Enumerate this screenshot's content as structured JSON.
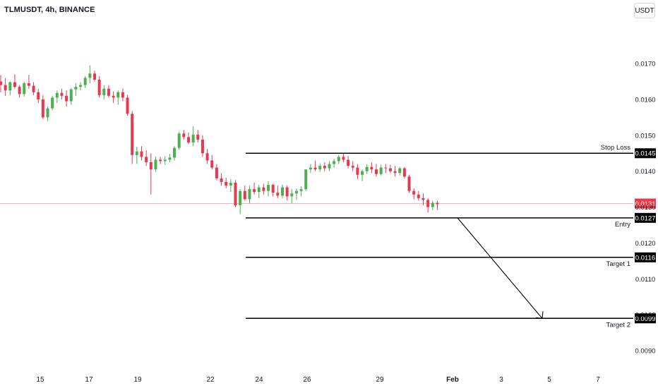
{
  "header": {
    "symbol": "TLMUSDT, 4h, BINANCE",
    "currency": "USDT"
  },
  "chart_data": {
    "type": "candlestick",
    "y_ticks": [
      "0.0170",
      "0.0160",
      "0.0150",
      "0.0140",
      "0.0130",
      "0.0120",
      "0.0110",
      "0.0100",
      "0.0090"
    ],
    "ylim": [
      0.00855,
      0.01818
    ],
    "x_ticks": [
      "15",
      "17",
      "19",
      "22",
      "24",
      "26",
      "29",
      "Feb",
      "3",
      "5",
      "7"
    ],
    "current_price": "0.0131",
    "levels": [
      {
        "name": "Stop Loss",
        "value": 0.0145,
        "label": "0.0145"
      },
      {
        "name": "Entry",
        "value": 0.0127,
        "label": "0.0127"
      },
      {
        "name": "Target 1",
        "value": 0.0116,
        "label": "0.0116"
      },
      {
        "name": "Target 2",
        "value": 0.0099,
        "label": "0.0099"
      }
    ],
    "colors": {
      "up": "#26a69a",
      "down": "#ef5350",
      "up_candle": "#4caf50",
      "down_candle": "#e53950",
      "line": "#000000",
      "current": "#f23645"
    },
    "candles": [
      [
        0.0165,
        0.01668,
        0.0162,
        0.0164
      ],
      [
        0.0164,
        0.0166,
        0.0161,
        0.01625
      ],
      [
        0.01625,
        0.0165,
        0.01612,
        0.01648
      ],
      [
        0.01648,
        0.0167,
        0.0163,
        0.01635
      ],
      [
        0.01635,
        0.0164,
        0.01605,
        0.01615
      ],
      [
        0.01615,
        0.0165,
        0.01608,
        0.01645
      ],
      [
        0.01645,
        0.01668,
        0.0163,
        0.01638
      ],
      [
        0.01638,
        0.01648,
        0.01612,
        0.0162
      ],
      [
        0.0162,
        0.0163,
        0.0159,
        0.016
      ],
      [
        0.016,
        0.01612,
        0.01545,
        0.0155
      ],
      [
        0.0155,
        0.0158,
        0.0154,
        0.01575
      ],
      [
        0.01575,
        0.0161,
        0.0157,
        0.01605
      ],
      [
        0.01605,
        0.01625,
        0.0159,
        0.01618
      ],
      [
        0.01618,
        0.0163,
        0.016,
        0.0161
      ],
      [
        0.0161,
        0.01625,
        0.0158,
        0.01595
      ],
      [
        0.01595,
        0.01632,
        0.01585,
        0.01628
      ],
      [
        0.01628,
        0.01645,
        0.0161,
        0.01635
      ],
      [
        0.01635,
        0.01648,
        0.01625,
        0.0164
      ],
      [
        0.0164,
        0.01665,
        0.01632,
        0.0166
      ],
      [
        0.0166,
        0.01695,
        0.01645,
        0.01672
      ],
      [
        0.01672,
        0.0168,
        0.0165,
        0.01655
      ],
      [
        0.01655,
        0.01665,
        0.01605,
        0.01612
      ],
      [
        0.01612,
        0.0164,
        0.016,
        0.0163
      ],
      [
        0.0163,
        0.0164,
        0.01605,
        0.0161
      ],
      [
        0.0161,
        0.01622,
        0.0159,
        0.01605
      ],
      [
        0.01605,
        0.01625,
        0.01585,
        0.0162
      ],
      [
        0.0162,
        0.0163,
        0.01595,
        0.01605
      ],
      [
        0.01605,
        0.01612,
        0.01555,
        0.0156
      ],
      [
        0.0156,
        0.01568,
        0.0142,
        0.01445
      ],
      [
        0.01445,
        0.01468,
        0.0142,
        0.01455
      ],
      [
        0.01455,
        0.0147,
        0.0143,
        0.0144
      ],
      [
        0.0144,
        0.01458,
        0.01415,
        0.01425
      ],
      [
        0.01425,
        0.0145,
        0.01335,
        0.01405
      ],
      [
        0.01405,
        0.0144,
        0.01398,
        0.01432
      ],
      [
        0.01432,
        0.0144,
        0.0142,
        0.01428
      ],
      [
        0.01428,
        0.01442,
        0.01418,
        0.01432
      ],
      [
        0.01432,
        0.01448,
        0.01425,
        0.01438
      ],
      [
        0.01438,
        0.0147,
        0.0143,
        0.01465
      ],
      [
        0.01465,
        0.0151,
        0.0146,
        0.01505
      ],
      [
        0.01505,
        0.01515,
        0.01488,
        0.01495
      ],
      [
        0.01495,
        0.01508,
        0.01475,
        0.0148
      ],
      [
        0.0148,
        0.01525,
        0.0147,
        0.01502
      ],
      [
        0.01502,
        0.01515,
        0.0148,
        0.01488
      ],
      [
        0.01488,
        0.015,
        0.0144,
        0.0145
      ],
      [
        0.0145,
        0.01462,
        0.0142,
        0.0143
      ],
      [
        0.0143,
        0.01445,
        0.01405,
        0.0141
      ],
      [
        0.0141,
        0.0142,
        0.01375,
        0.0138
      ],
      [
        0.0138,
        0.01395,
        0.0136,
        0.0137
      ],
      [
        0.0137,
        0.01382,
        0.01352,
        0.0136
      ],
      [
        0.0136,
        0.01378,
        0.01342,
        0.01368
      ],
      [
        0.01368,
        0.01375,
        0.013,
        0.01305
      ],
      [
        0.01305,
        0.0135,
        0.0128,
        0.01345
      ],
      [
        0.01345,
        0.0136,
        0.01318,
        0.01322
      ],
      [
        0.01322,
        0.0136,
        0.0131,
        0.0135
      ],
      [
        0.0135,
        0.01368,
        0.01335,
        0.01342
      ],
      [
        0.01342,
        0.01362,
        0.01325,
        0.01355
      ],
      [
        0.01355,
        0.01365,
        0.01335,
        0.01345
      ],
      [
        0.01345,
        0.01372,
        0.0133,
        0.01362
      ],
      [
        0.01362,
        0.01365,
        0.0133,
        0.0134
      ],
      [
        0.0134,
        0.0136,
        0.01325,
        0.01332
      ],
      [
        0.01332,
        0.01362,
        0.01325,
        0.01355
      ],
      [
        0.01355,
        0.0136,
        0.01318,
        0.0133
      ],
      [
        0.0133,
        0.0135,
        0.0131,
        0.01338
      ],
      [
        0.01338,
        0.01352,
        0.0132,
        0.01345
      ],
      [
        0.01345,
        0.01358,
        0.0133,
        0.0135
      ],
      [
        0.0135,
        0.014,
        0.01345,
        0.01405
      ],
      [
        0.01405,
        0.0142,
        0.01395,
        0.0141
      ],
      [
        0.0141,
        0.0143,
        0.014,
        0.01405
      ],
      [
        0.01405,
        0.01422,
        0.01398,
        0.01415
      ],
      [
        0.01415,
        0.01425,
        0.014,
        0.01408
      ],
      [
        0.01408,
        0.01428,
        0.014,
        0.0142
      ],
      [
        0.0142,
        0.01435,
        0.0141,
        0.01428
      ],
      [
        0.01428,
        0.01445,
        0.0142,
        0.0144
      ],
      [
        0.0144,
        0.0145,
        0.01425,
        0.01432
      ],
      [
        0.01432,
        0.01442,
        0.01408,
        0.01415
      ],
      [
        0.01415,
        0.01428,
        0.014,
        0.0141
      ],
      [
        0.0141,
        0.0142,
        0.01378,
        0.0139
      ],
      [
        0.0139,
        0.01405,
        0.01372,
        0.014
      ],
      [
        0.014,
        0.0142,
        0.01392,
        0.01412
      ],
      [
        0.01412,
        0.01425,
        0.01395,
        0.01405
      ],
      [
        0.01405,
        0.0142,
        0.01385,
        0.01392
      ],
      [
        0.01392,
        0.01418,
        0.01388,
        0.0141
      ],
      [
        0.0141,
        0.0142,
        0.01395,
        0.01408
      ],
      [
        0.01408,
        0.01418,
        0.01395,
        0.014
      ],
      [
        0.014,
        0.01415,
        0.01385,
        0.01395
      ],
      [
        0.01395,
        0.01412,
        0.01388,
        0.01408
      ],
      [
        0.01408,
        0.01412,
        0.0138,
        0.01385
      ],
      [
        0.01385,
        0.0139,
        0.0134,
        0.01345
      ],
      [
        0.01345,
        0.01352,
        0.01322,
        0.01335
      ],
      [
        0.01335,
        0.01345,
        0.01318,
        0.01325
      ],
      [
        0.01325,
        0.01338,
        0.01305,
        0.0132
      ],
      [
        0.0132,
        0.01325,
        0.01285,
        0.013
      ],
      [
        0.013,
        0.01318,
        0.01292,
        0.01312
      ],
      [
        0.01312,
        0.01318,
        0.01292,
        0.01308
      ]
    ]
  }
}
